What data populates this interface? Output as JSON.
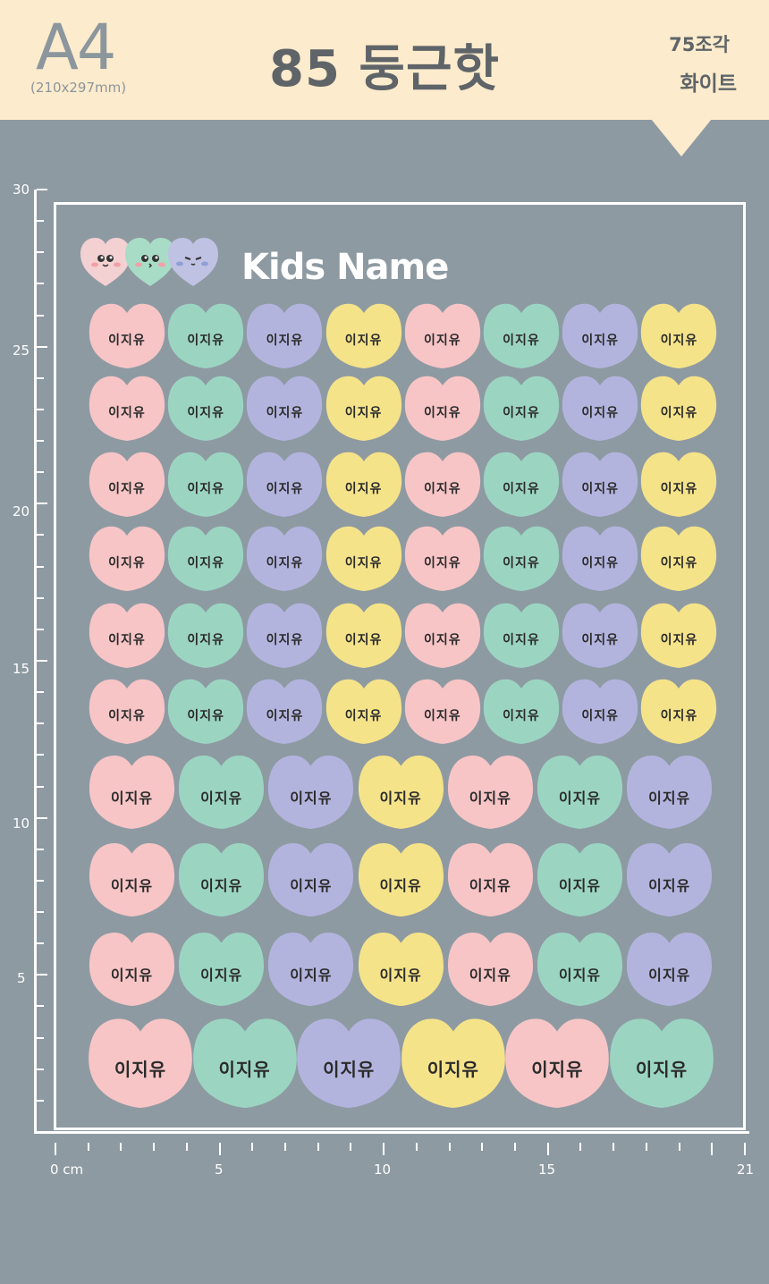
{
  "header": {
    "paper_size": "A4",
    "paper_dims": "(210x297mm)",
    "title": "85 둥근핫",
    "pieces": "75조각",
    "color": "화이트"
  },
  "brand": {
    "title": "Kids Name"
  },
  "sticker_label": "이지유",
  "colors": {
    "pink": "#f7c5c6",
    "mint": "#9bd5c2",
    "lavender": "#b3b4de",
    "yellow": "#f5e38a"
  },
  "ruler": {
    "vertical_labels": [
      "30",
      "25",
      "20",
      "15",
      "10",
      "5"
    ],
    "horizontal_labels": [
      "0 cm",
      "5",
      "10",
      "15",
      "21"
    ]
  }
}
